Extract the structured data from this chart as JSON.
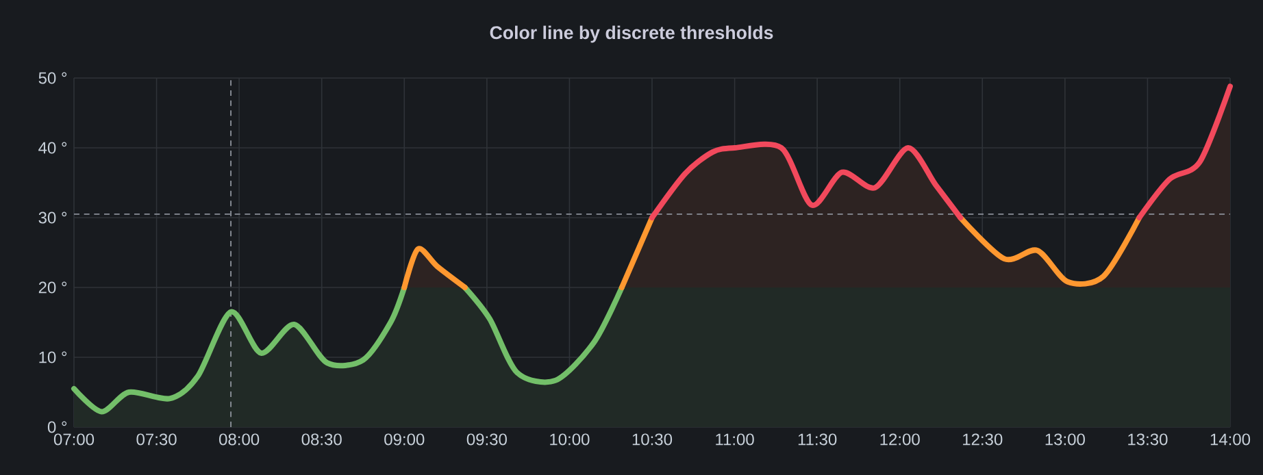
{
  "chart_data": {
    "type": "line",
    "title": "Color line by discrete thresholds",
    "x": [
      7.0,
      7.167,
      7.333,
      7.583,
      7.75,
      7.95,
      8.133,
      8.333,
      8.533,
      8.75,
      8.917,
      9.0,
      9.083,
      9.2,
      9.367,
      9.517,
      9.683,
      9.917,
      10.15,
      10.317,
      10.5,
      10.7,
      10.867,
      11.0,
      11.283,
      11.467,
      11.65,
      11.85,
      12.05,
      12.217,
      12.367,
      12.633,
      12.833,
      13.017,
      13.233,
      13.45,
      13.633,
      13.817,
      14.0
    ],
    "series": [
      {
        "color": "#73bf69",
        "values": [
          5.5,
          2.2,
          5,
          4.1,
          7.3,
          16.5,
          10.6,
          14.7,
          9.2,
          9.6,
          15,
          20,
          null,
          null,
          20,
          15.5,
          7.8,
          6.7,
          12.2,
          20,
          null,
          null,
          null,
          null,
          null,
          null,
          null,
          null,
          null,
          null,
          null,
          null,
          null,
          null,
          null,
          null,
          null,
          null,
          null
        ]
      },
      {
        "color": "#ff9830",
        "values": [
          null,
          null,
          null,
          null,
          null,
          null,
          null,
          null,
          null,
          null,
          null,
          20,
          25.5,
          23,
          20,
          null,
          null,
          null,
          null,
          20,
          30,
          null,
          null,
          null,
          null,
          null,
          null,
          null,
          null,
          null,
          30,
          24.1,
          25.3,
          20.8,
          21.6,
          30,
          null,
          null,
          null
        ]
      },
      {
        "color": "#f2495c",
        "values": [
          null,
          null,
          null,
          null,
          null,
          null,
          null,
          null,
          null,
          null,
          null,
          null,
          null,
          null,
          null,
          null,
          null,
          null,
          null,
          null,
          30,
          36.3,
          39.4,
          40,
          40,
          31.8,
          36.5,
          34.3,
          40,
          34.7,
          30,
          null,
          null,
          null,
          null,
          30,
          35.5,
          38,
          48.8
        ]
      }
    ],
    "xlim": [
      7,
      14
    ],
    "ylim": [
      0,
      50
    ],
    "xticks": [
      {
        "value": 7,
        "label": "07:00"
      },
      {
        "value": 7.5,
        "label": "07:30"
      },
      {
        "value": 8,
        "label": "08:00"
      },
      {
        "value": 8.5,
        "label": "08:30"
      },
      {
        "value": 9,
        "label": "09:00"
      },
      {
        "value": 9.5,
        "label": "09:30"
      },
      {
        "value": 10,
        "label": "10:00"
      },
      {
        "value": 10.5,
        "label": "10:30"
      },
      {
        "value": 11,
        "label": "11:00"
      },
      {
        "value": 11.5,
        "label": "11:30"
      },
      {
        "value": 12,
        "label": "12:00"
      },
      {
        "value": 12.5,
        "label": "12:30"
      },
      {
        "value": 13,
        "label": "13:00"
      },
      {
        "value": 13.5,
        "label": "13:30"
      },
      {
        "value": 14,
        "label": "14:00"
      }
    ],
    "yticks": [
      {
        "value": 0,
        "label": "0 °"
      },
      {
        "value": 10,
        "label": "10 °"
      },
      {
        "value": 20,
        "label": "20 °"
      },
      {
        "value": 30,
        "label": "30 °"
      },
      {
        "value": 40,
        "label": "40 °"
      },
      {
        "value": 50,
        "label": "50 °"
      }
    ],
    "grid": true,
    "marker": "none",
    "line_style": "solid",
    "bands": [
      {
        "axis": "y",
        "from": 0,
        "to": 20,
        "color": "#212a26"
      },
      {
        "axis": "y",
        "from": 20,
        "to": 50,
        "color": "#2d2322"
      }
    ],
    "ref_lines": [
      {
        "axis": "x",
        "value": 7.95,
        "color": "#8a8f98",
        "line_style": "dashed"
      },
      {
        "axis": "y",
        "value": 30.5,
        "color": "#8a8f98",
        "line_style": "dashed"
      }
    ]
  }
}
